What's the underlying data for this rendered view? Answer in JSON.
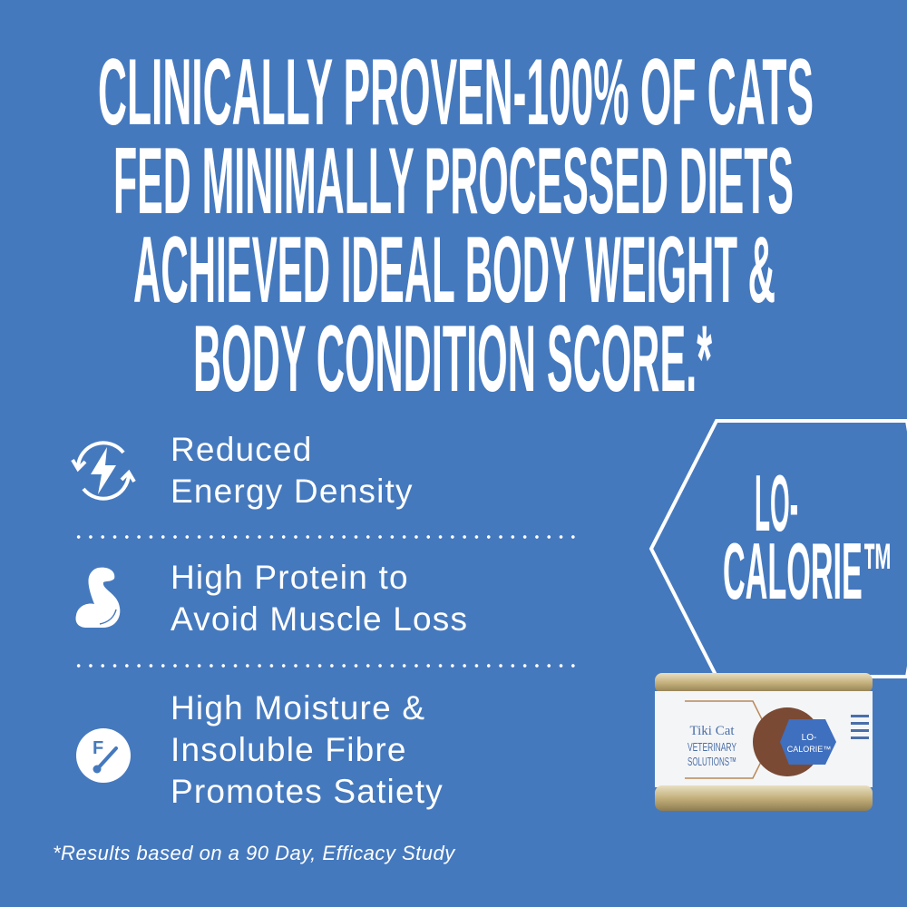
{
  "headline": {
    "lines": [
      "CLINICALLY PROVEN-100% OF CATS",
      "FED MINIMALLY PROCESSED DIETS",
      "ACHIEVED IDEAL BODY WEIGHT &",
      "BODY CONDITION SCORE.*"
    ]
  },
  "features": [
    {
      "icon": "energy-cycle-icon",
      "lines": [
        "Reduced",
        "Energy Density"
      ]
    },
    {
      "icon": "flexed-muscle-icon",
      "lines": [
        "High Protein to",
        "Avoid Muscle Loss"
      ]
    },
    {
      "icon": "fibre-gauge-icon",
      "lines": [
        "High Moisture &",
        "Insoluble Fibre",
        "Promotes Satiety"
      ]
    }
  ],
  "badge": {
    "line1": "LO-",
    "line2": "CALORIE™"
  },
  "product": {
    "brand": "Tiki Cat",
    "line1": "VETERINARY",
    "line2": "SOLUTIONS™",
    "badge1": "LO-",
    "badge2": "CALORIE™"
  },
  "footnote": "*Results based on a 90 Day, Efficacy Study",
  "colors": {
    "background": "#4579be",
    "text": "#ffffff",
    "can_gold": "#c9b98a"
  }
}
